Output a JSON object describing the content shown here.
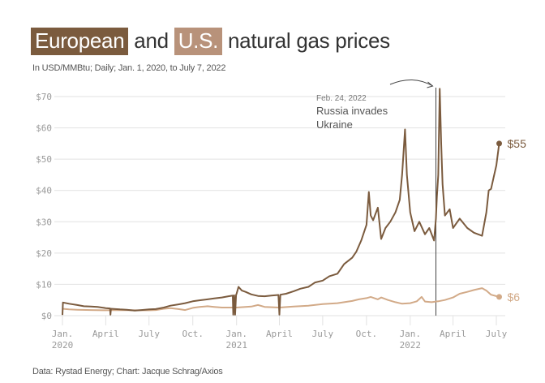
{
  "header": {
    "title_part1": "European",
    "title_part2": " and ",
    "title_part3": "U.S.",
    "title_part4": " natural gas prices",
    "subtitle": "In USD/MMBtu; Daily; Jan. 1, 2020, to July 7, 2022"
  },
  "footer": {
    "source": "Data: Rystad Energy; Chart: Jacque Schrag/Axios"
  },
  "colors": {
    "european": "#7b5b3e",
    "us": "#d2aa88",
    "european_highlight": "#7b5b3e",
    "us_highlight": "#b8927a",
    "grid": "#e2e2e2",
    "annotation_line": "#444444"
  },
  "chart_data": {
    "type": "line",
    "title": "European and U.S. natural gas prices",
    "subtitle": "In USD/MMBtu; Daily; Jan. 1, 2020, to July 7, 2022",
    "xlabel": "",
    "ylabel": "",
    "xlim": [
      "2020-01-01",
      "2022-07-07"
    ],
    "ylim": [
      0,
      70
    ],
    "grid": true,
    "yticks": [
      0,
      10,
      20,
      30,
      40,
      50,
      60,
      70
    ],
    "ytick_labels": [
      "$0",
      "$10",
      "$20",
      "$30",
      "$40",
      "$50",
      "$60",
      "$70"
    ],
    "xticks": [
      {
        "date": "2020-01-01",
        "line1": "Jan.",
        "line2": "2020"
      },
      {
        "date": "2020-04-01",
        "line1": "April",
        "line2": ""
      },
      {
        "date": "2020-07-01",
        "line1": "July",
        "line2": ""
      },
      {
        "date": "2020-10-01",
        "line1": "Oct.",
        "line2": ""
      },
      {
        "date": "2021-01-01",
        "line1": "Jan.",
        "line2": "2021"
      },
      {
        "date": "2021-04-01",
        "line1": "April",
        "line2": ""
      },
      {
        "date": "2021-07-01",
        "line1": "July",
        "line2": ""
      },
      {
        "date": "2021-10-01",
        "line1": "Oct.",
        "line2": ""
      },
      {
        "date": "2022-01-01",
        "line1": "Jan.",
        "line2": "2022"
      },
      {
        "date": "2022-04-01",
        "line1": "April",
        "line2": ""
      },
      {
        "date": "2022-07-01",
        "line1": "July",
        "line2": ""
      }
    ],
    "annotation": {
      "date": "2022-02-24",
      "date_label": "Feb. 24, 2022",
      "text_line1": "Russia invades",
      "text_line2": "Ukraine"
    },
    "series": [
      {
        "name": "European",
        "end_label": "$55",
        "x": [
          "2020-01-01",
          "2020-01-02",
          "2020-01-15",
          "2020-02-01",
          "2020-02-15",
          "2020-03-01",
          "2020-03-15",
          "2020-04-01",
          "2020-04-10",
          "2020-04-11",
          "2020-04-12",
          "2020-05-01",
          "2020-05-15",
          "2020-06-01",
          "2020-06-15",
          "2020-07-01",
          "2020-07-15",
          "2020-08-01",
          "2020-08-15",
          "2020-09-01",
          "2020-09-15",
          "2020-10-01",
          "2020-10-15",
          "2020-11-01",
          "2020-11-15",
          "2020-12-01",
          "2020-12-15",
          "2020-12-24",
          "2020-12-25",
          "2020-12-27",
          "2020-12-29",
          "2020-12-31",
          "2021-01-01",
          "2021-01-05",
          "2021-01-12",
          "2021-01-20",
          "2021-02-01",
          "2021-02-15",
          "2021-03-01",
          "2021-03-15",
          "2021-03-30",
          "2021-04-01",
          "2021-04-03",
          "2021-04-15",
          "2021-05-01",
          "2021-05-15",
          "2021-06-01",
          "2021-06-15",
          "2021-07-01",
          "2021-07-15",
          "2021-08-01",
          "2021-08-15",
          "2021-09-01",
          "2021-09-10",
          "2021-09-20",
          "2021-10-01",
          "2021-10-06",
          "2021-10-10",
          "2021-10-15",
          "2021-10-25",
          "2021-11-01",
          "2021-11-10",
          "2021-11-20",
          "2021-12-01",
          "2021-12-10",
          "2021-12-15",
          "2021-12-21",
          "2021-12-25",
          "2022-01-01",
          "2022-01-10",
          "2022-01-20",
          "2022-02-01",
          "2022-02-10",
          "2022-02-20",
          "2022-02-24",
          "2022-02-26",
          "2022-03-01",
          "2022-03-04",
          "2022-03-07",
          "2022-03-10",
          "2022-03-15",
          "2022-03-25",
          "2022-04-01",
          "2022-04-15",
          "2022-05-01",
          "2022-05-15",
          "2022-06-01",
          "2022-06-10",
          "2022-06-15",
          "2022-06-20",
          "2022-06-25",
          "2022-07-01",
          "2022-07-07"
        ],
        "values": [
          0.2,
          4.2,
          3.8,
          3.4,
          3.0,
          2.9,
          2.8,
          2.4,
          2.3,
          0.3,
          2.2,
          2.0,
          1.9,
          1.6,
          1.8,
          2.0,
          2.1,
          2.6,
          3.2,
          3.6,
          4.0,
          4.6,
          4.9,
          5.2,
          5.5,
          5.8,
          6.2,
          6.4,
          0.3,
          6.5,
          0.3,
          6.6,
          7.0,
          9.2,
          8.0,
          7.6,
          6.8,
          6.3,
          6.2,
          6.4,
          6.6,
          0.3,
          6.7,
          7.0,
          7.8,
          8.6,
          9.2,
          10.6,
          11.2,
          12.6,
          13.4,
          16.5,
          18.5,
          20.5,
          24.0,
          29.0,
          39.5,
          32.0,
          30.5,
          34.5,
          24.5,
          28.0,
          30.0,
          33.0,
          37.0,
          45.0,
          59.5,
          45.0,
          33.0,
          27.0,
          30.0,
          26.0,
          28.0,
          24.0,
          31.0,
          38.0,
          45.0,
          72.5,
          55.0,
          42.0,
          32.0,
          34.0,
          28.0,
          31.0,
          28.0,
          26.5,
          25.5,
          33.0,
          40.0,
          40.5,
          44.0,
          48.0,
          55.0
        ]
      },
      {
        "name": "U.S.",
        "end_label": "$6",
        "x": [
          "2020-01-01",
          "2020-01-15",
          "2020-02-01",
          "2020-03-01",
          "2020-04-01",
          "2020-05-01",
          "2020-06-01",
          "2020-07-01",
          "2020-07-15",
          "2020-08-01",
          "2020-08-15",
          "2020-09-01",
          "2020-09-15",
          "2020-10-01",
          "2020-10-15",
          "2020-11-01",
          "2020-11-15",
          "2020-12-01",
          "2021-01-01",
          "2021-02-01",
          "2021-02-15",
          "2021-03-01",
          "2021-04-01",
          "2021-05-01",
          "2021-06-01",
          "2021-07-01",
          "2021-08-01",
          "2021-09-01",
          "2021-09-15",
          "2021-10-01",
          "2021-10-10",
          "2021-10-25",
          "2021-11-01",
          "2021-11-15",
          "2021-12-01",
          "2021-12-15",
          "2022-01-01",
          "2022-01-15",
          "2022-01-25",
          "2022-02-01",
          "2022-02-15",
          "2022-03-01",
          "2022-03-15",
          "2022-04-01",
          "2022-04-15",
          "2022-05-01",
          "2022-05-15",
          "2022-06-01",
          "2022-06-10",
          "2022-06-20",
          "2022-07-07"
        ],
        "values": [
          2.2,
          2.0,
          1.9,
          1.8,
          1.7,
          1.8,
          1.7,
          1.7,
          1.8,
          2.2,
          2.4,
          2.1,
          1.8,
          2.5,
          2.8,
          3.0,
          2.8,
          2.6,
          2.6,
          2.9,
          3.4,
          2.8,
          2.6,
          2.9,
          3.2,
          3.7,
          4.0,
          4.7,
          5.2,
          5.6,
          6.0,
          5.2,
          5.8,
          5.0,
          4.3,
          3.8,
          4.0,
          4.6,
          6.0,
          4.5,
          4.3,
          4.6,
          5.0,
          5.8,
          7.0,
          7.6,
          8.2,
          8.8,
          8.0,
          6.7,
          6.0
        ]
      }
    ]
  }
}
